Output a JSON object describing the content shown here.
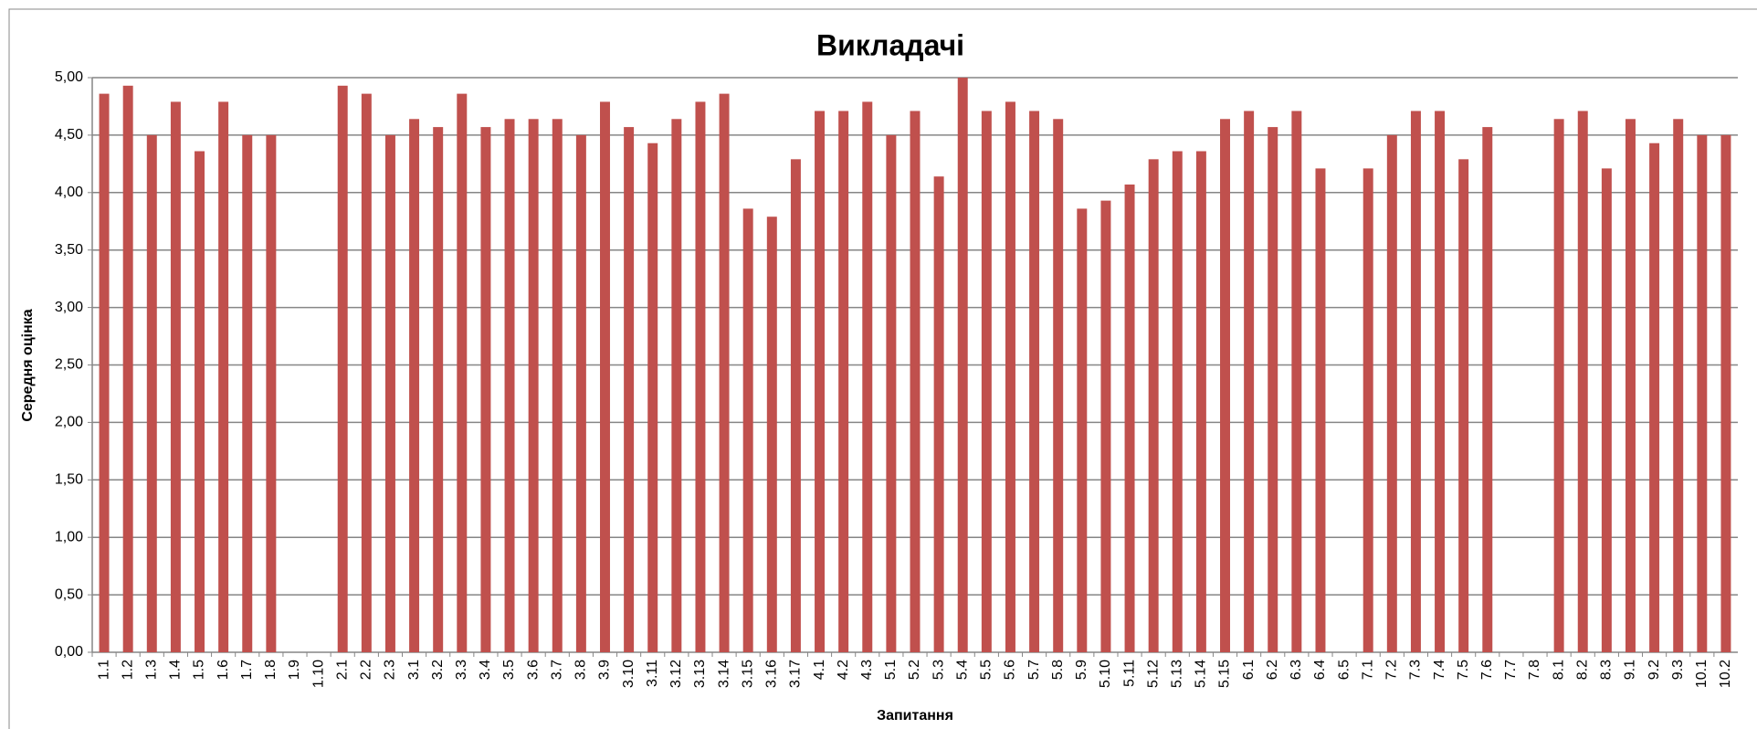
{
  "chart_data": {
    "type": "bar",
    "title": "Викладачі",
    "x_label": "Запитання",
    "y_label": "Середня оцінка",
    "categories": [
      "1.1",
      "1.2",
      "1.3",
      "1.4",
      "1.5",
      "1.6",
      "1.7",
      "1.8",
      "1.9",
      "1.10",
      "2.1",
      "2.2",
      "2.3",
      "3.1",
      "3.2",
      "3.3",
      "3.4",
      "3.5",
      "3.6",
      "3.7",
      "3.8",
      "3.9",
      "3.10",
      "3.11",
      "3.12",
      "3.13",
      "3.14",
      "3.15",
      "3.16",
      "3.17",
      "4.1",
      "4.2",
      "4.3",
      "5.1",
      "5.2",
      "5.3",
      "5.4",
      "5.5",
      "5.6",
      "5.7",
      "5.8",
      "5.9",
      "5.10",
      "5.11",
      "5.12",
      "5.13",
      "5.14",
      "5.15",
      "6.1",
      "6.2",
      "6.3",
      "6.4",
      "6.5",
      "7.1",
      "7.2",
      "7.3",
      "7.4",
      "7.5",
      "7.6",
      "7.7",
      "7.8",
      "8.1",
      "8.2",
      "8.3",
      "9.1",
      "9.2",
      "9.3",
      "10.1",
      "10.2"
    ],
    "values": [
      4.86,
      4.93,
      4.5,
      4.79,
      4.36,
      4.79,
      4.5,
      4.5,
      null,
      null,
      4.93,
      4.86,
      4.5,
      4.64,
      4.57,
      4.86,
      4.57,
      4.64,
      4.64,
      4.64,
      4.5,
      4.79,
      4.57,
      4.43,
      4.64,
      4.79,
      4.86,
      3.86,
      3.79,
      4.29,
      4.71,
      4.71,
      4.79,
      4.5,
      4.71,
      4.14,
      5.0,
      4.71,
      4.79,
      4.71,
      4.64,
      3.86,
      3.93,
      4.07,
      4.29,
      4.36,
      4.36,
      4.64,
      4.71,
      4.57,
      4.71,
      4.21,
      null,
      4.21,
      4.5,
      4.71,
      4.71,
      4.29,
      4.57,
      null,
      null,
      4.64,
      4.71,
      4.21,
      4.64,
      4.43,
      4.64,
      4.5,
      4.5
    ],
    "color": "#c0504d",
    "ylim": [
      0,
      5
    ],
    "yticks": [
      {
        "value": 0,
        "label": "0,00"
      },
      {
        "value": 0.5,
        "label": "0,50"
      },
      {
        "value": 1,
        "label": "1,00"
      },
      {
        "value": 1.5,
        "label": "1,50"
      },
      {
        "value": 2,
        "label": "2,00"
      },
      {
        "value": 2.5,
        "label": "2,50"
      },
      {
        "value": 3,
        "label": "3,00"
      },
      {
        "value": 3.5,
        "label": "3,50"
      },
      {
        "value": 4,
        "label": "4,00"
      },
      {
        "value": 4.5,
        "label": "4,50"
      },
      {
        "value": 5,
        "label": "5,00"
      }
    ],
    "grid": true
  }
}
